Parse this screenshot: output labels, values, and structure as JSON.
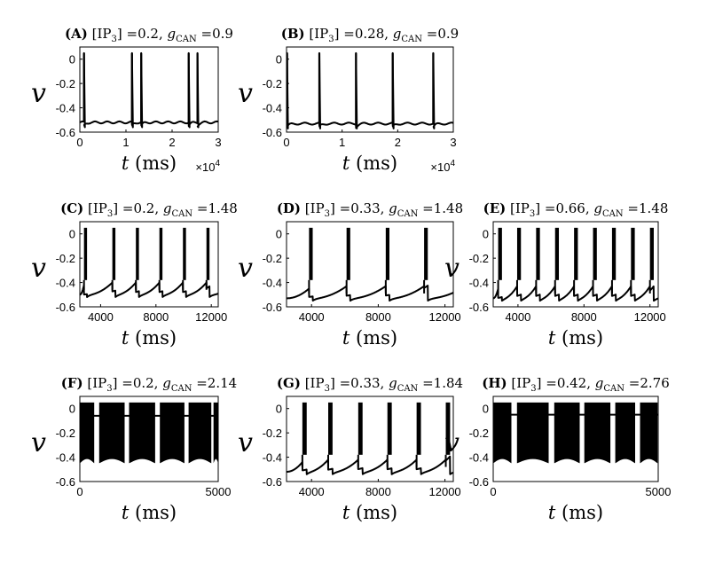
{
  "chart_data": [
    {
      "panel": "A",
      "type": "line",
      "title": {
        "label": "(A)",
        "ip3": "0.2",
        "gcan": "0.9"
      },
      "xlabel": "(ms)",
      "ylabel": "v",
      "x_multiplier": "4",
      "xlim": [
        0,
        30000
      ],
      "ylim": [
        -0.6,
        0.1
      ],
      "xticks": [
        0,
        10000,
        20000,
        30000
      ],
      "xticklabels": [
        "0",
        "1",
        "2",
        "3"
      ],
      "yticks": [
        0,
        -0.2,
        -0.4,
        -0.6
      ],
      "yticklabels": [
        "0",
        "-0.2",
        "-0.4",
        "-0.6"
      ],
      "baseline": -0.52,
      "spike_peak": 0.05,
      "spike_times": [
        900,
        11300,
        13300,
        23600,
        25500
      ]
    },
    {
      "panel": "B",
      "type": "line",
      "title": {
        "label": "(B)",
        "ip3": "0.28",
        "gcan": "0.9"
      },
      "xlabel": "(ms)",
      "ylabel": "v",
      "x_multiplier": "4",
      "xlim": [
        0,
        30000
      ],
      "ylim": [
        -0.6,
        0.1
      ],
      "xticks": [
        0,
        10000,
        20000,
        30000
      ],
      "xticklabels": [
        "0",
        "1",
        "2",
        "3"
      ],
      "yticks": [
        0,
        -0.2,
        -0.4,
        -0.6
      ],
      "yticklabels": [
        "0",
        "-0.2",
        "-0.4",
        "-0.6"
      ],
      "baseline": -0.53,
      "spike_peak": 0.05,
      "spike_times": [
        100,
        5900,
        12500,
        19100,
        26400
      ]
    },
    {
      "panel": "C",
      "type": "line",
      "title": {
        "label": "(C)",
        "ip3": "0.2",
        "gcan": "1.48"
      },
      "xlabel": "(ms)",
      "ylabel": "v",
      "xlim": [
        2500,
        12500
      ],
      "ylim": [
        -0.6,
        0.1
      ],
      "xticks": [
        4000,
        8000,
        12000
      ],
      "xticklabels": [
        "4000",
        "8000",
        "12000"
      ],
      "yticks": [
        0,
        -0.2,
        -0.4,
        -0.6
      ],
      "yticklabels": [
        "0",
        "-0.2",
        "-0.4",
        "-0.6"
      ],
      "trough": -0.5,
      "burst_top": 0.05,
      "burst_low": -0.38,
      "burst_times": [
        2800,
        4850,
        6550,
        8250,
        9950,
        11650
      ],
      "burst_width": 220
    },
    {
      "panel": "D",
      "type": "line",
      "title": {
        "label": "(D)",
        "ip3": "0.33",
        "gcan": "1.48"
      },
      "xlabel": "(ms)",
      "ylabel": "v",
      "xlim": [
        2500,
        12500
      ],
      "ylim": [
        -0.6,
        0.1
      ],
      "xticks": [
        4000,
        8000,
        12000
      ],
      "xticklabels": [
        "4000",
        "8000",
        "12000"
      ],
      "yticks": [
        0,
        -0.2,
        -0.4,
        -0.6
      ],
      "yticklabels": [
        "0",
        "-0.2",
        "-0.4",
        "-0.6"
      ],
      "trough": -0.53,
      "burst_top": 0.05,
      "burst_low": -0.38,
      "burst_times": [
        3850,
        6100,
        8450,
        10750
      ],
      "burst_width": 220
    },
    {
      "panel": "E",
      "type": "line",
      "title": {
        "label": "(E)",
        "ip3": "0.66",
        "gcan": "1.48"
      },
      "xlabel": "(ms)",
      "ylabel": "v",
      "xlim": [
        2500,
        12500
      ],
      "ylim": [
        -0.6,
        0.1
      ],
      "xticks": [
        4000,
        8000,
        12000
      ],
      "xticklabels": [
        "4000",
        "8000",
        "12000"
      ],
      "yticks": [
        0,
        -0.2,
        -0.4,
        -0.6
      ],
      "yticklabels": [
        "0",
        "-0.2",
        "-0.4",
        "-0.6"
      ],
      "trough": -0.53,
      "burst_top": 0.05,
      "burst_low": -0.38,
      "burst_times": [
        2800,
        3950,
        5100,
        6250,
        7400,
        8550,
        9700,
        10850,
        12000
      ],
      "burst_width": 230
    },
    {
      "panel": "F",
      "type": "line",
      "title": {
        "label": "(F)",
        "ip3": "0.2",
        "gcan": "2.14"
      },
      "xlabel": "(ms)",
      "ylabel": "v",
      "xlim": [
        0,
        5000
      ],
      "ylim": [
        -0.6,
        0.1
      ],
      "xticks": [
        0,
        5000
      ],
      "xticklabels": [
        "0",
        "5000"
      ],
      "yticks": [
        0,
        -0.2,
        -0.4,
        -0.6
      ],
      "yticklabels": [
        "0",
        "-0.2",
        "-0.4",
        "-0.6"
      ],
      "band_top": 0.05,
      "band_bottom": -0.45,
      "gap_level": -0.06,
      "band_segments": [
        [
          0,
          520
        ],
        [
          700,
          1620
        ],
        [
          1780,
          2720
        ],
        [
          2890,
          3780
        ],
        [
          3930,
          4750
        ],
        [
          4830,
          5000
        ]
      ]
    },
    {
      "panel": "G",
      "type": "line",
      "title": {
        "label": "(G)",
        "ip3": "0.33",
        "gcan": "1.84"
      },
      "xlabel": "(ms)",
      "ylabel": "v",
      "xlim": [
        2500,
        12500
      ],
      "ylim": [
        -0.6,
        0.1
      ],
      "xticks": [
        4000,
        8000,
        12000
      ],
      "xticklabels": [
        "4000",
        "8000",
        "12000"
      ],
      "yticks": [
        0,
        -0.2,
        -0.4,
        -0.6
      ],
      "yticklabels": [
        "0",
        "-0.2",
        "-0.4",
        "-0.6"
      ],
      "trough": -0.52,
      "burst_top": 0.05,
      "burst_low": -0.38,
      "burst_times": [
        3450,
        5000,
        6800,
        8550,
        10300,
        12050
      ],
      "burst_width": 260
    },
    {
      "panel": "H",
      "type": "line",
      "title": {
        "label": "(H)",
        "ip3": "0.42",
        "gcan": "2.76"
      },
      "xlabel": "(ms)",
      "ylabel": "v",
      "xlim": [
        0,
        5000
      ],
      "ylim": [
        -0.6,
        0.1
      ],
      "xticks": [
        0,
        5000
      ],
      "xticklabels": [
        "0",
        "5000"
      ],
      "yticks": [
        0,
        -0.2,
        -0.4,
        -0.6
      ],
      "yticklabels": [
        "0",
        "-0.2",
        "-0.4",
        "-0.6"
      ],
      "band_top": 0.05,
      "band_bottom": -0.45,
      "gap_level": -0.05,
      "band_segments": [
        [
          0,
          550
        ],
        [
          720,
          1680
        ],
        [
          1850,
          2620
        ],
        [
          2760,
          3550
        ],
        [
          3700,
          4300
        ],
        [
          4450,
          4980
        ]
      ]
    }
  ]
}
